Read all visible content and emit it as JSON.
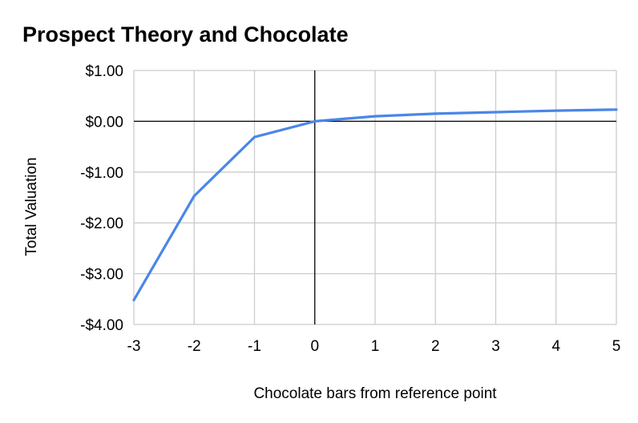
{
  "chart_data": {
    "type": "line",
    "title": "Prospect Theory and Chocolate",
    "xlabel": "Chocolate bars from reference point",
    "ylabel": "Total Valuation",
    "x": [
      -3,
      -2,
      -1,
      0,
      1,
      2,
      3,
      4,
      5
    ],
    "series": [
      {
        "values": [
          -3.52,
          -1.47,
          -0.31,
          0.0,
          0.1,
          0.15,
          0.18,
          0.21,
          0.23
        ]
      }
    ],
    "xlim": [
      -3,
      5
    ],
    "ylim": [
      -4,
      1
    ],
    "x_ticks": [
      -3,
      -2,
      -1,
      0,
      1,
      2,
      3,
      4,
      5
    ],
    "y_ticks": [
      1,
      0,
      -1,
      -2,
      -3,
      -4
    ],
    "x_tick_labels": [
      "-3",
      "-2",
      "-1",
      "0",
      "1",
      "2",
      "3",
      "4",
      "5"
    ],
    "y_tick_labels": [
      "$1.00",
      "$0.00",
      "-$1.00",
      "-$2.00",
      "-$3.00",
      "-$4.00"
    ],
    "grid": true,
    "legend": "none",
    "colors": {
      "series": "#4a86e8",
      "grid": "#cccccc",
      "zero_axis": "#000000"
    }
  }
}
